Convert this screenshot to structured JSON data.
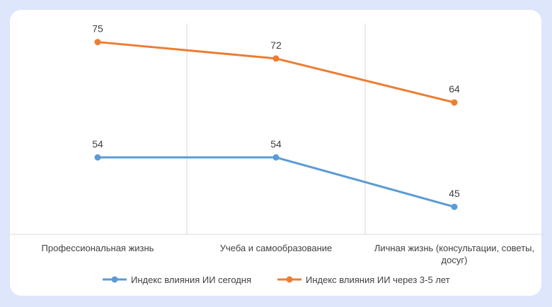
{
  "chart_data": {
    "type": "line",
    "title": "",
    "xlabel": "",
    "ylabel": "",
    "categories": [
      [
        "Профессиональная жизнь"
      ],
      [
        "Учеба и самообразование"
      ],
      [
        "Личная жизнь (консультации, советы,",
        "досуг)"
      ]
    ],
    "series": [
      {
        "name": "Индекс влияния ИИ сегодня",
        "color": "#5b9bd5",
        "values": [
          54,
          54,
          45
        ]
      },
      {
        "name": "Индекс влияния ИИ через 3-5 лет",
        "color": "#ed7d31",
        "values": [
          75,
          72,
          64
        ]
      }
    ],
    "ylim": [
      40,
      77
    ],
    "grid": {
      "vertical": true,
      "horizontal": false
    },
    "legend": "bottom"
  }
}
